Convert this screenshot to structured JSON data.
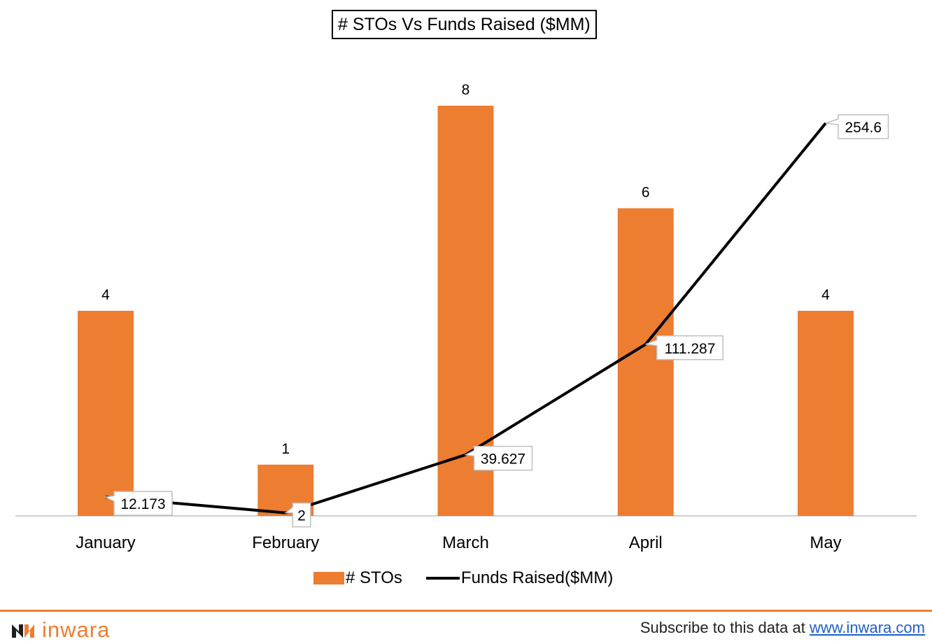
{
  "title": "#  STOs Vs Funds Raised ($MM)",
  "colors": {
    "bar": "#ED7D31",
    "line": "#000000",
    "axis": "#bfbfbf",
    "footer_rule": "#ED7D31",
    "link": "#1f5fc8"
  },
  "chart_data": {
    "type": "bar",
    "title": "#  STOs Vs Funds Raised ($MM)",
    "categories": [
      "January",
      "February",
      "March",
      "April",
      "May"
    ],
    "series": [
      {
        "name": "# STOs",
        "type": "bar",
        "values": [
          4,
          1,
          8,
          6,
          4
        ],
        "labels": [
          "4",
          "1",
          "8",
          "6",
          "4"
        ]
      },
      {
        "name": "Funds Raised($MM)",
        "type": "line",
        "values": [
          12.173,
          2,
          39.627,
          111.287,
          254.6
        ],
        "labels": [
          "12.173",
          "2",
          "39.627",
          "111.287",
          "254.6"
        ]
      }
    ],
    "legend": "bottom",
    "grid": false
  },
  "legend": {
    "bar_label": "# STOs",
    "line_label": "Funds Raised($MM)"
  },
  "footer": {
    "brand": "inwara",
    "subscribe_text": "Subscribe to this data at ",
    "link_text": "www.inwara.com"
  }
}
